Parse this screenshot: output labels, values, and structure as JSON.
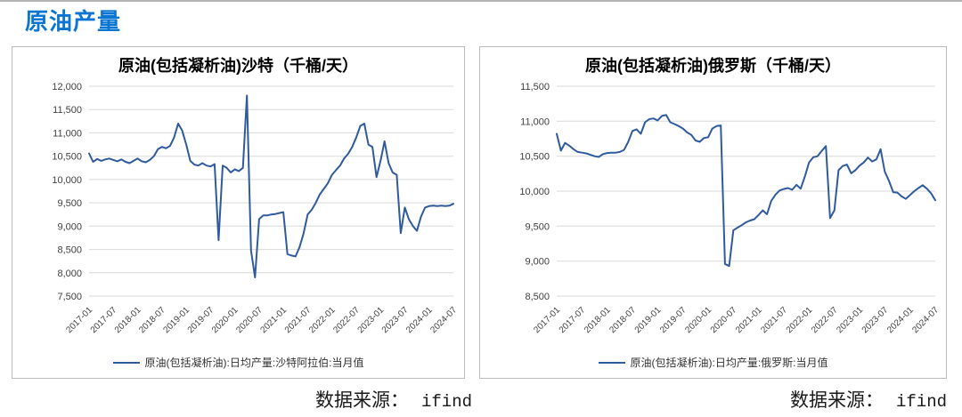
{
  "page_title": "原油产量",
  "colors": {
    "accent_blue": "#0b76d1",
    "line_blue": "#2f5b9e",
    "grid": "#d9d9d9",
    "panel_border": "#bcbcbc",
    "tick_text": "#404040"
  },
  "source_notes": [
    {
      "label": "数据来源：",
      "value": "ifind"
    },
    {
      "label": "数据来源：",
      "value": "ifind"
    }
  ],
  "chart_data": [
    {
      "type": "line",
      "title": "原油(包括凝析油)沙特（千桶/天）",
      "legend": "原油(包括凝析油):日均产量:沙特阿拉伯:当月值",
      "ylim": [
        7500,
        12000
      ],
      "y_step": 500,
      "y_tick_labels": [
        "12,000",
        "11,500",
        "11,000",
        "10,500",
        "10,000",
        "9,500",
        "9,000",
        "8,500",
        "8,000",
        "7,500"
      ],
      "x_start": "2017-01",
      "x_end": "2024-07",
      "freq": "monthly",
      "tick_every": 6,
      "x_tick_labels": [
        "2017-01",
        "2017-07",
        "2018-01",
        "2018-07",
        "2019-01",
        "2019-07",
        "2020-01",
        "2020-07",
        "2021-01",
        "2021-07",
        "2022-01",
        "2022-07",
        "2023-01",
        "2023-07",
        "2024-01",
        "2024-07"
      ],
      "grid": true,
      "legend_position": "bottom",
      "values": [
        10560,
        10380,
        10440,
        10400,
        10430,
        10450,
        10420,
        10390,
        10430,
        10380,
        10350,
        10400,
        10450,
        10390,
        10370,
        10420,
        10500,
        10650,
        10700,
        10670,
        10720,
        10900,
        11200,
        11050,
        10750,
        10400,
        10320,
        10300,
        10350,
        10300,
        10280,
        10330,
        8700,
        10300,
        10250,
        10150,
        10220,
        10180,
        10250,
        11800,
        8480,
        7900,
        9150,
        9230,
        9230,
        9250,
        9260,
        9280,
        9300,
        8400,
        8370,
        8350,
        8550,
        8850,
        9250,
        9350,
        9500,
        9680,
        9800,
        9920,
        10100,
        10200,
        10300,
        10450,
        10550,
        10700,
        10900,
        11150,
        11200,
        10750,
        10700,
        10050,
        10400,
        10820,
        10350,
        10150,
        10100,
        8850,
        9400,
        9150,
        9000,
        8900,
        9200,
        9400,
        9430,
        9440,
        9430,
        9440,
        9430,
        9440,
        9480
      ]
    },
    {
      "type": "line",
      "title": "原油(包括凝析油)俄罗斯（千桶/天）",
      "legend": "原油(包括凝析油):日均产量:俄罗斯:当月值",
      "ylim": [
        8500,
        11500
      ],
      "y_step": 500,
      "y_tick_labels": [
        "11,500",
        "11,000",
        "10,500",
        "10,000",
        "9,500",
        "9,000",
        "8,500"
      ],
      "x_start": "2017-01",
      "x_end": "2024-07",
      "freq": "monthly",
      "tick_every": 6,
      "x_tick_labels": [
        "2017-01",
        "2017-07",
        "2018-01",
        "2018-07",
        "2019-01",
        "2019-07",
        "2020-01",
        "2020-07",
        "2021-01",
        "2021-07",
        "2022-01",
        "2022-07",
        "2023-01",
        "2023-07",
        "2024-01",
        "2024-07"
      ],
      "grid": true,
      "legend_position": "bottom",
      "values": [
        10820,
        10580,
        10690,
        10650,
        10600,
        10560,
        10550,
        10540,
        10520,
        10500,
        10490,
        10530,
        10545,
        10550,
        10550,
        10560,
        10590,
        10705,
        10860,
        10885,
        10820,
        10985,
        11030,
        11040,
        11010,
        11075,
        11090,
        10985,
        10960,
        10930,
        10895,
        10840,
        10805,
        10725,
        10705,
        10760,
        10770,
        10895,
        10930,
        10940,
        8960,
        8930,
        9440,
        9480,
        9515,
        9555,
        9580,
        9600,
        9660,
        9725,
        9670,
        9860,
        9950,
        10010,
        10030,
        10045,
        10020,
        10090,
        10035,
        10210,
        10410,
        10485,
        10500,
        10575,
        10645,
        9615,
        9725,
        10300,
        10360,
        10380,
        10255,
        10300,
        10365,
        10410,
        10480,
        10425,
        10455,
        10600,
        10280,
        10145,
        9985,
        9980,
        9925,
        9890,
        9945,
        10000,
        10045,
        10085,
        10035,
        9970,
        9870
      ]
    }
  ]
}
